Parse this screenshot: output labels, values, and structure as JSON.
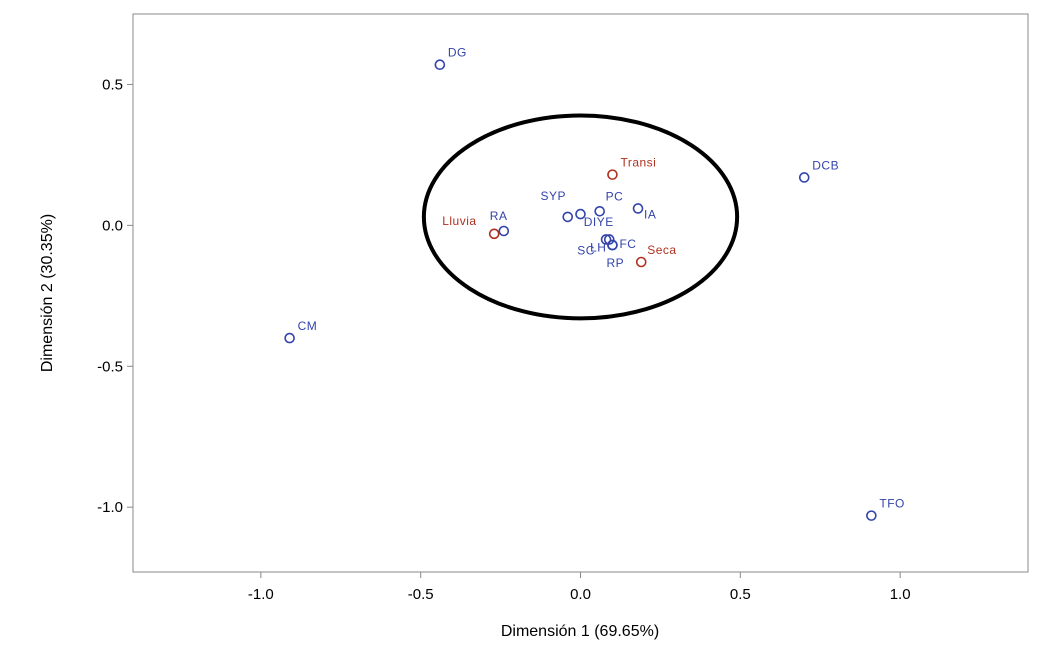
{
  "chart_data": {
    "type": "scatter",
    "title": "",
    "xlabel": "Dimensión 1 (69.65%)",
    "ylabel": "Dimensión 2 (30.35%)",
    "xlim": [
      -1.4,
      1.4
    ],
    "ylim": [
      -1.23,
      0.75
    ],
    "x_ticks": [
      {
        "value": -1.0,
        "label": "-1.0"
      },
      {
        "value": -0.5,
        "label": "-0.5"
      },
      {
        "value": 0.0,
        "label": "0.0"
      },
      {
        "value": 0.5,
        "label": "0.5"
      },
      {
        "value": 1.0,
        "label": "1.0"
      }
    ],
    "y_ticks": [
      {
        "value": 0.5,
        "label": "0.5"
      },
      {
        "value": 0.0,
        "label": "0.0"
      },
      {
        "value": -0.5,
        "label": "-0.5"
      },
      {
        "value": -1.0,
        "label": "-1.0"
      }
    ],
    "grid": false,
    "colors": {
      "blue_series": "#3344aa",
      "red_series": "#b03020",
      "frame": "#888888",
      "ellipse": "#000000"
    },
    "series": [
      {
        "color": "#3344aa",
        "points": [
          {
            "label": "DG",
            "x": -0.44,
            "y": 0.57
          },
          {
            "label": "DCB",
            "x": 0.7,
            "y": 0.17
          },
          {
            "label": "CM",
            "x": -0.91,
            "y": -0.4
          },
          {
            "label": "TFO",
            "x": 0.91,
            "y": -1.03
          },
          {
            "label": "RA",
            "x": -0.24,
            "y": -0.02
          },
          {
            "label": "DIYE",
            "x": -0.04,
            "y": 0.03
          },
          {
            "label": "SYP",
            "x": 0.0,
            "y": 0.04
          },
          {
            "label": "PC",
            "x": 0.06,
            "y": 0.05
          },
          {
            "label": "IA",
            "x": 0.18,
            "y": 0.06
          },
          {
            "label": "LH",
            "x": 0.08,
            "y": -0.05
          },
          {
            "label": "FC",
            "x": 0.1,
            "y": -0.07
          },
          {
            "label": "SC",
            "x": 0.09,
            "y": -0.05
          },
          {
            "label": "RP",
            "x": 0.1,
            "y": -0.07
          }
        ]
      },
      {
        "color": "#b03020",
        "points": [
          {
            "label": "Transi",
            "x": 0.1,
            "y": 0.18
          },
          {
            "label": "Lluvia",
            "x": -0.27,
            "y": -0.03
          },
          {
            "label": "Seca",
            "x": 0.19,
            "y": -0.13
          }
        ]
      }
    ],
    "annotations": [
      {
        "type": "ellipse",
        "cx": 0.0,
        "cy": 0.03,
        "rx": 0.49,
        "ry": 0.36
      }
    ]
  }
}
